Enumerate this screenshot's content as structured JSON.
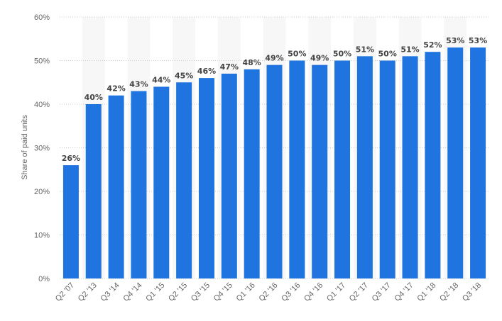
{
  "chart_data": {
    "type": "bar",
    "title": "",
    "xlabel": "",
    "ylabel": "Share of paid units",
    "categories": [
      "Q2 '07",
      "Q2 '13",
      "Q3 '14",
      "Q4 '14",
      "Q1 '15",
      "Q2 '15",
      "Q3 '15",
      "Q4 '15",
      "Q1 '16",
      "Q2 '16",
      "Q3 '16",
      "Q4 '16",
      "Q1 '17",
      "Q2 '17",
      "Q3 '17",
      "Q4 '17",
      "Q1 '18",
      "Q2 '18",
      "Q3 '18"
    ],
    "values": [
      26,
      40,
      42,
      43,
      44,
      45,
      46,
      47,
      48,
      49,
      50,
      49,
      50,
      51,
      50,
      51,
      52,
      53,
      53
    ],
    "value_labels": [
      "26%",
      "40%",
      "42%",
      "43%",
      "44%",
      "45%",
      "46%",
      "47%",
      "48%",
      "49%",
      "50%",
      "49%",
      "50%",
      "51%",
      "50%",
      "51%",
      "52%",
      "53%",
      "53%"
    ],
    "ylim": [
      0,
      60
    ],
    "y_ticks": [
      0,
      10,
      20,
      30,
      40,
      50,
      60
    ],
    "y_tick_labels": [
      "0%",
      "10%",
      "20%",
      "30%",
      "40%",
      "50%",
      "60%"
    ],
    "grid": true,
    "legend": "none",
    "colors": {
      "bar": "#1f74e0",
      "grid": "#cccccc",
      "band": "#f7f7f7",
      "text": "#666666",
      "label": "#444444"
    }
  }
}
